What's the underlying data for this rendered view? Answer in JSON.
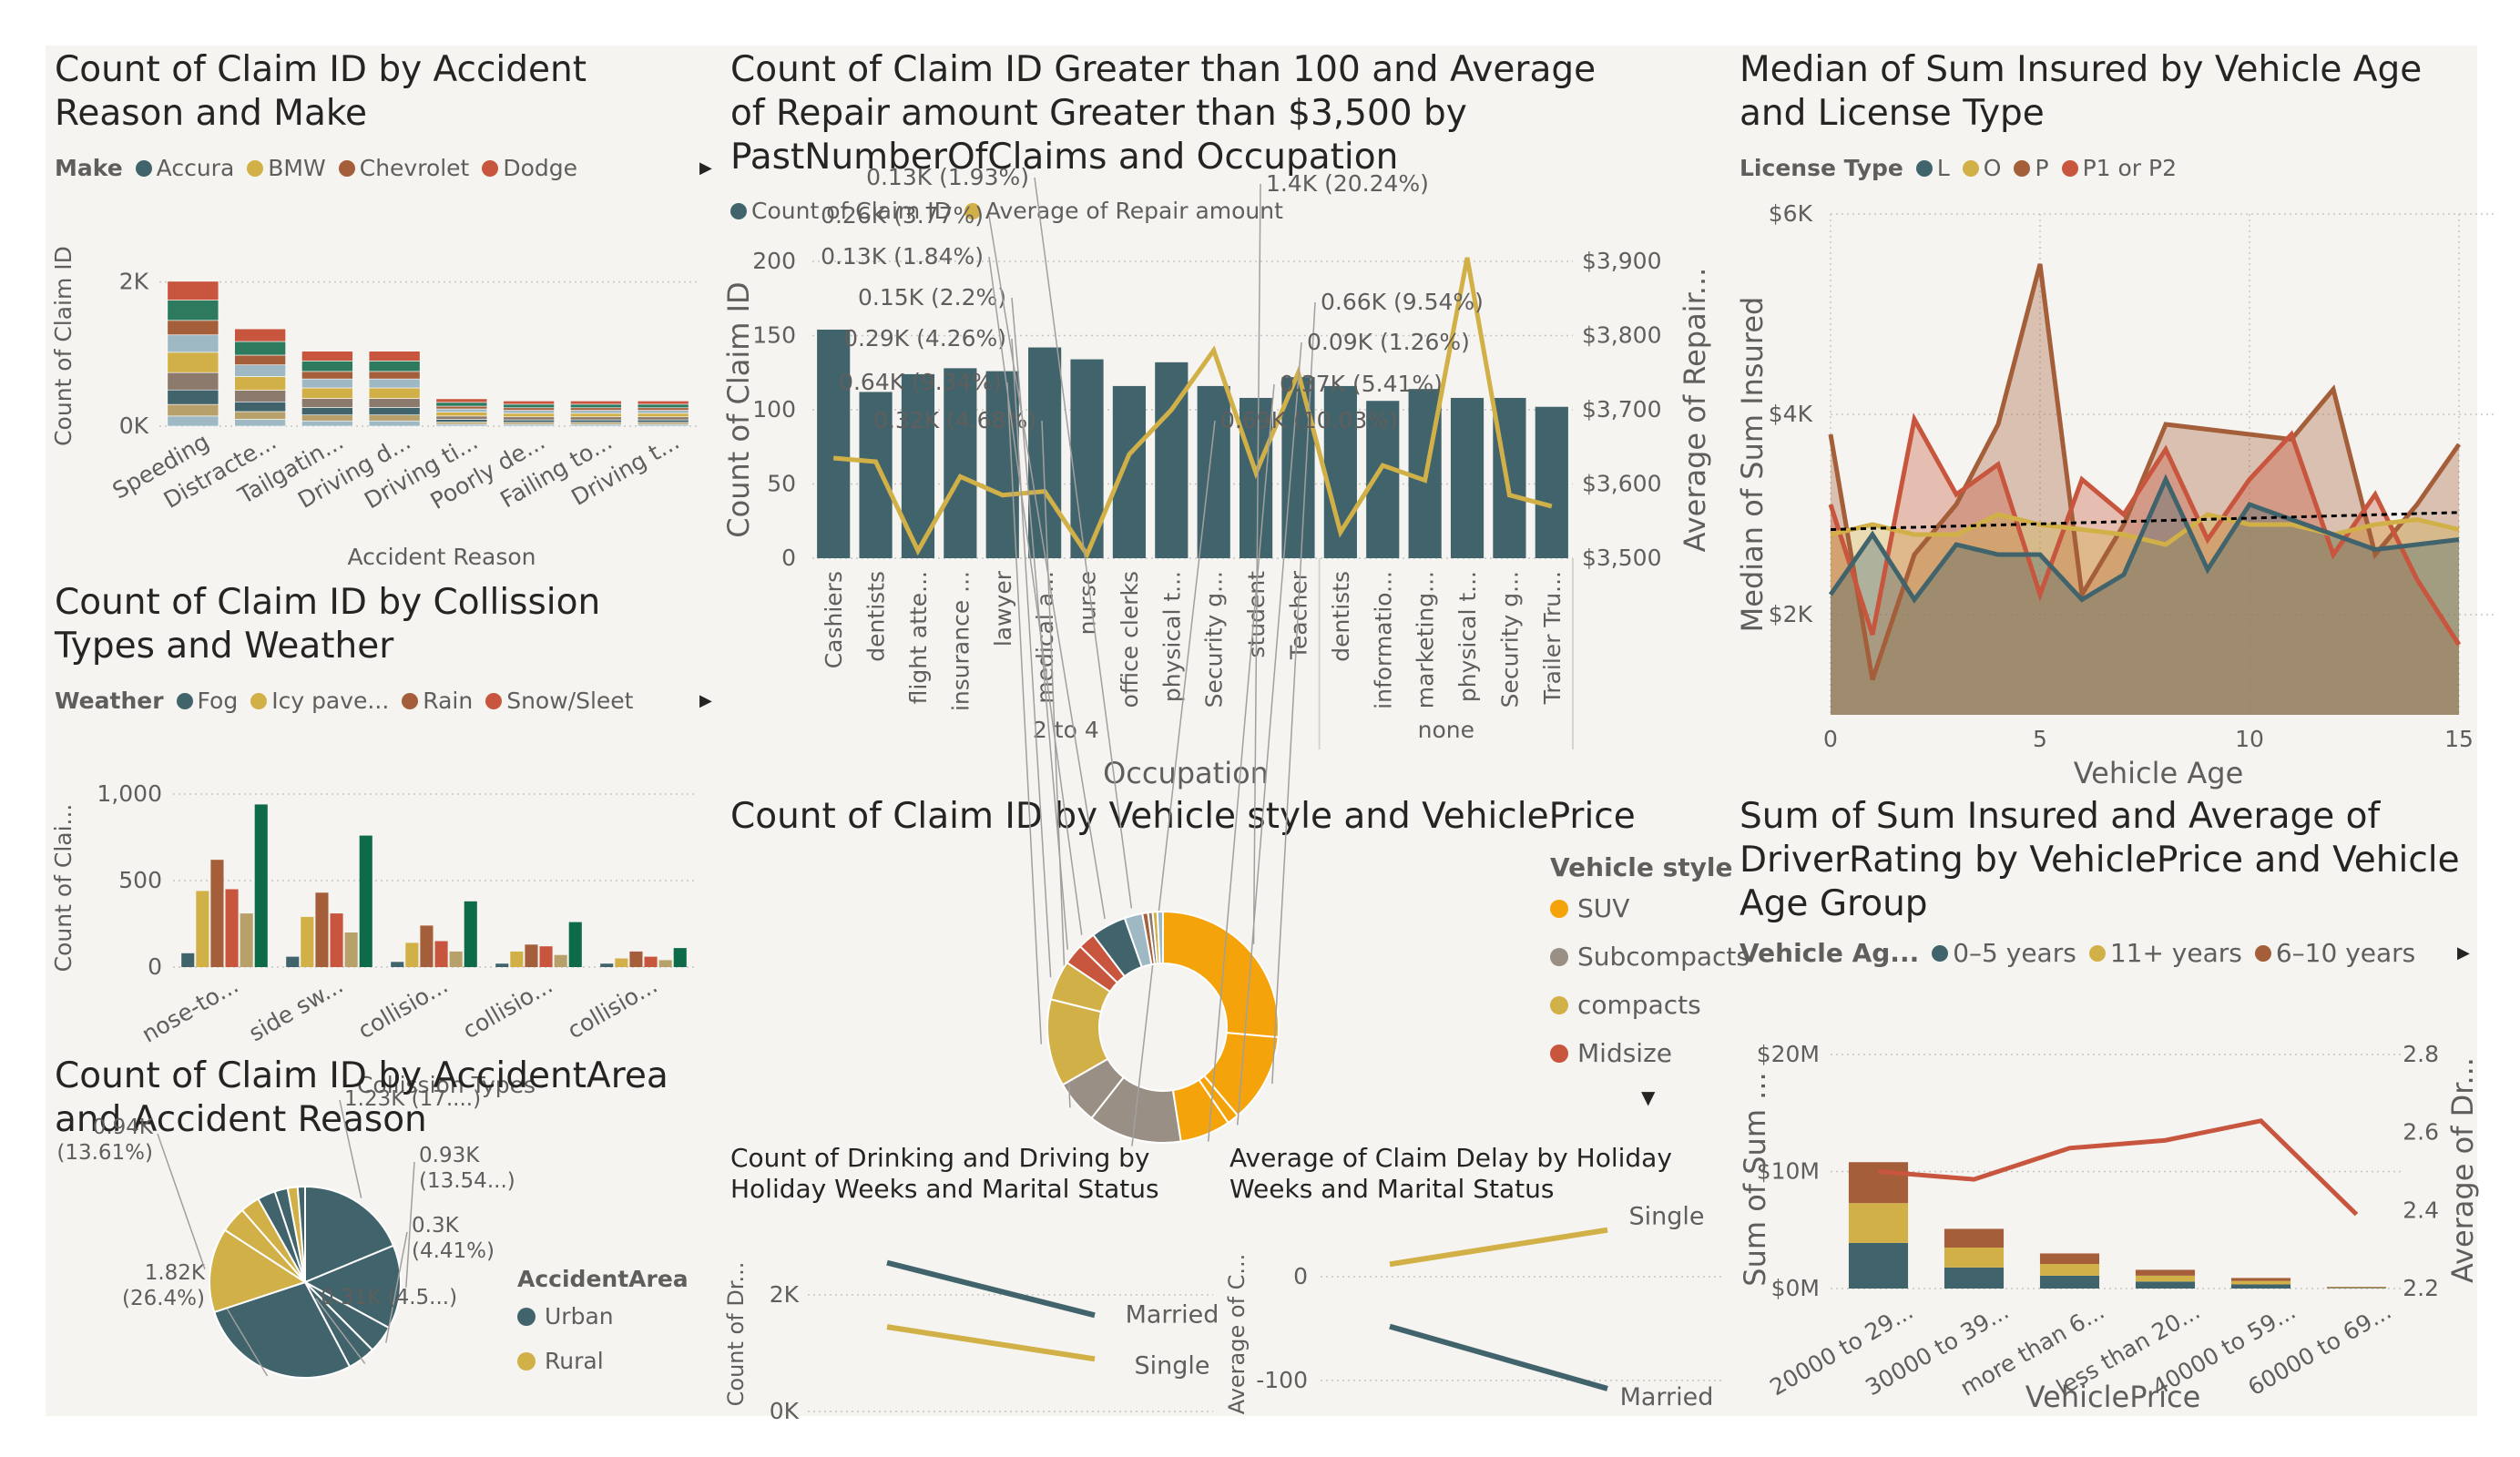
{
  "colors": {
    "c1": "#41646c",
    "c2": "#d2b048",
    "c3": "#a45e3a",
    "c4": "#c8553d",
    "c5": "#9fb9c4",
    "c6": "#b8a06a",
    "c7": "#8c7b6d",
    "c8": "#2d7a5f",
    "c9": "#0e6b4a",
    "orange": "#f5a30a",
    "gray": "#9a8f85"
  },
  "chart_data": [
    {
      "id": "claims-by-reason-make",
      "type": "bar",
      "stacked": true,
      "title": "Count of Claim ID by Accident Reason and Make",
      "legend_title": "Make",
      "legend": [
        "Accura",
        "BMW",
        "Chevrolet",
        "Dodge"
      ],
      "xlabel": "Accident Reason",
      "ylabel": "Count of Claim ID",
      "yticks": [
        "0K",
        "2K"
      ],
      "ylim": [
        0,
        2400
      ],
      "categories": [
        "Speeding",
        "Distracte...",
        "Tailgatin...",
        "Driving d...",
        "Driving ti...",
        "Poorly de...",
        "Failing to...",
        "Driving t..."
      ],
      "totals": [
        2010,
        1350,
        1040,
        1040,
        380,
        350,
        350,
        350
      ]
    },
    {
      "id": "claims-repair-by-occupation",
      "type": "bar",
      "title": "Count of Claim ID Greater than 100 and Average of Repair amount Greater than $3,500 by PastNumberOfClaims and Occupation",
      "legend": [
        "Count of Claim ID",
        "Average of Repair amount"
      ],
      "xlabel": "Occupation",
      "ylabel": "Count of Claim ID",
      "y2label": "Average of Repair...",
      "yticks": [
        "0",
        "50",
        "100",
        "150",
        "200"
      ],
      "y2ticks": [
        "$3,500",
        "$3,600",
        "$3,700",
        "$3,800",
        "$3,900"
      ],
      "ylim": [
        0,
        200
      ],
      "y2lim": [
        3500,
        3900
      ],
      "groups": [
        "2 to 4",
        "none"
      ],
      "categories": [
        "Cashiers",
        "dentists",
        "flight atte...",
        "insurance ...",
        "lawyer",
        "medical a...",
        "nurse",
        "office clerks",
        "physical t...",
        "Security g...",
        "student",
        "Teacher",
        "dentists",
        "informatio...",
        "marketing...",
        "physical t...",
        "Security g...",
        "Trailer Tru..."
      ],
      "group_sizes": [
        12,
        6
      ],
      "series": [
        {
          "name": "Count of Claim ID",
          "values": [
            154,
            112,
            124,
            128,
            126,
            142,
            134,
            116,
            132,
            116,
            108,
            122,
            116,
            106,
            114,
            108,
            108,
            102
          ]
        },
        {
          "name": "Average of Repair amount",
          "values": [
            3635,
            3630,
            3510,
            3610,
            3585,
            3590,
            3505,
            3640,
            3700,
            3780,
            3615,
            3750,
            3535,
            3625,
            3605,
            3905,
            3585,
            3570
          ]
        }
      ]
    },
    {
      "id": "median-sum-insured-by-age",
      "type": "area",
      "title": "Median of Sum Insured by Vehicle Age and License Type",
      "legend_title": "License Type",
      "legend": [
        "L",
        "O",
        "P",
        "P1 or P2"
      ],
      "xlabel": "Vehicle Age",
      "ylabel": "Median of Sum Insured",
      "xticks": [
        "0",
        "5",
        "10",
        "15"
      ],
      "yticks": [
        "$2K",
        "$4K",
        "$6K"
      ],
      "xlim": [
        0,
        15
      ],
      "ylim": [
        1000,
        6000
      ],
      "x": [
        0,
        1,
        2,
        3,
        4,
        5,
        6,
        7,
        8,
        9,
        10,
        11,
        12,
        13,
        14,
        15
      ],
      "series": [
        {
          "name": "L",
          "values": [
            2200,
            2800,
            2150,
            2700,
            2600,
            2600,
            2150,
            2400,
            3350,
            2450,
            3100,
            2950,
            2800,
            2650,
            2700,
            2750
          ]
        },
        {
          "name": "O",
          "values": [
            2800,
            2900,
            2800,
            2800,
            3000,
            2900,
            2850,
            2800,
            2700,
            3000,
            2900,
            2900,
            2800,
            2900,
            2950,
            2850
          ]
        },
        {
          "name": "P",
          "values": [
            3800,
            1350,
            2600,
            3100,
            3900,
            5500,
            2200,
            2900,
            3900,
            3850,
            3800,
            3750,
            4250,
            2600,
            3100,
            3700
          ]
        },
        {
          "name": "P1 or P2",
          "values": [
            3100,
            1800,
            3950,
            3200,
            3500,
            2200,
            3350,
            3000,
            3650,
            2750,
            3350,
            3800,
            2600,
            3200,
            2350,
            1700
          ]
        }
      ],
      "trend": [
        2850,
        3020
      ]
    },
    {
      "id": "claims-by-collision-weather",
      "type": "bar",
      "title": "Count of Claim ID by Collission Types and Weather",
      "legend_title": "Weather",
      "legend": [
        "Fog",
        "Icy pave...",
        "Rain",
        "Snow/Sleet"
      ],
      "xlabel": "Collission Types",
      "ylabel": "Count of Clai...",
      "yticks": [
        "0",
        "500",
        "1,000"
      ],
      "ylim": [
        0,
        1000
      ],
      "categories": [
        "nose-to...",
        "side sw...",
        "collisio...",
        "collisio...",
        "collisio..."
      ],
      "series": [
        {
          "name": "s1",
          "values": [
            80,
            60,
            30,
            20,
            20
          ]
        },
        {
          "name": "s2",
          "values": [
            440,
            290,
            140,
            90,
            50
          ]
        },
        {
          "name": "s3",
          "values": [
            620,
            430,
            240,
            130,
            90
          ]
        },
        {
          "name": "s4",
          "values": [
            450,
            310,
            150,
            120,
            60
          ]
        },
        {
          "name": "s5",
          "values": [
            310,
            200,
            90,
            70,
            40
          ]
        },
        {
          "name": "s6",
          "values": [
            940,
            760,
            380,
            260,
            110
          ]
        }
      ]
    },
    {
      "id": "claims-by-style-price",
      "type": "pie",
      "donut": true,
      "title": "Count of Claim ID by Vehicle style and VehiclePrice",
      "legend_title": "Vehicle style",
      "legend": [
        "SUV",
        "Subcompacts",
        "compacts",
        "Midsize"
      ],
      "slices": [
        {
          "label": "1.4K (20.24%)",
          "value": 20.24
        },
        {
          "label": "0.66K (9.54%)",
          "value": 9.54
        },
        {
          "label": "0.09K (1.26%)",
          "value": 1.26
        },
        {
          "label": "0.37K (5.41%)",
          "value": 5.41
        },
        {
          "label": "0.69K (10.03%)",
          "value": 10.03
        },
        {
          "label": "0.32K (4.68%)",
          "value": 4.68
        },
        {
          "label": "0.64K (9.34%)",
          "value": 9.34
        },
        {
          "label": "0.29K (4.26%)",
          "value": 4.26
        },
        {
          "label": "0.15K (2.2%)",
          "value": 2.2
        },
        {
          "label": "0.13K (1.84%)",
          "value": 1.84
        },
        {
          "label": "0.26K (3.77%)",
          "value": 3.77
        },
        {
          "label": "0.13K (1.93%)",
          "value": 1.93
        }
      ]
    },
    {
      "id": "claims-by-area-reason",
      "type": "pie",
      "title": "Count of Claim ID by AccidentArea and Accident Reason",
      "legend_title": "AccidentArea",
      "legend": [
        "Urban",
        "Rural"
      ],
      "slices": [
        {
          "label": "1.23K (17....)",
          "value": 17.9
        },
        {
          "label": "0.93K (13.54...)",
          "value": 13.54
        },
        {
          "label": "0.3K (4.41%)",
          "value": 4.41
        },
        {
          "label": "0.31K (4.5...)",
          "value": 4.5
        },
        {
          "label": "1.82K (26.4%)",
          "value": 26.4
        },
        {
          "label": "0.94K (13.61%)",
          "value": 13.61
        }
      ]
    },
    {
      "id": "drinking-by-holiday-marital",
      "type": "line",
      "title": "Count of Drinking and Driving by Holiday Weeks and Marital Status",
      "ylabel": "Count of Dr...",
      "yticks": [
        "0K",
        "2K"
      ],
      "ylim": [
        0,
        3200
      ],
      "series": [
        {
          "name": "Married",
          "values": [
            2550,
            1650
          ]
        },
        {
          "name": "Single",
          "values": [
            1450,
            900
          ]
        }
      ]
    },
    {
      "id": "claim-delay-by-holiday-marital",
      "type": "line",
      "title": "Average of Claim Delay by Holiday Weeks and Marital Status",
      "ylabel": "Average of C...",
      "yticks": [
        "-100",
        "0"
      ],
      "ylim": [
        -130,
        50
      ],
      "series": [
        {
          "name": "Single",
          "values": [
            12,
            45
          ]
        },
        {
          "name": "Married",
          "values": [
            -48,
            -108
          ]
        }
      ]
    },
    {
      "id": "sum-insured-driverrating",
      "type": "bar",
      "stacked": true,
      "title": "Sum of Sum Insured and Average of DriverRating by VehiclePrice and Vehicle Age Group",
      "legend_title": "Vehicle Ag...",
      "legend": [
        "0–5 years",
        "11+ years",
        "6–10 years"
      ],
      "xlabel": "VehiclePrice",
      "ylabel": "Sum of Sum ...",
      "y2label": "Average of Dr...",
      "yticks": [
        "$0M",
        "$10M",
        "$20M"
      ],
      "y2ticks": [
        "2.2",
        "2.4",
        "2.6",
        "2.8"
      ],
      "ylim": [
        0,
        20
      ],
      "y2lim": [
        2.2,
        2.8
      ],
      "categories": [
        "20000 to 29...",
        "30000 to 39...",
        "more than 6...",
        "less than 20...",
        "40000 to 59...",
        "60000 to 69..."
      ],
      "series": [
        {
          "name": "0–5 years",
          "values": [
            3.9,
            1.8,
            1.1,
            0.6,
            0.35,
            0.05
          ]
        },
        {
          "name": "11+ years",
          "values": [
            3.4,
            1.7,
            1.0,
            0.5,
            0.3,
            0.05
          ]
        },
        {
          "name": "6–10 years",
          "values": [
            3.5,
            1.6,
            0.9,
            0.5,
            0.25,
            0.05
          ]
        }
      ],
      "line": {
        "name": "Average of DriverRating",
        "values": [
          2.5,
          2.48,
          2.56,
          2.58,
          2.63,
          2.39
        ]
      }
    }
  ]
}
